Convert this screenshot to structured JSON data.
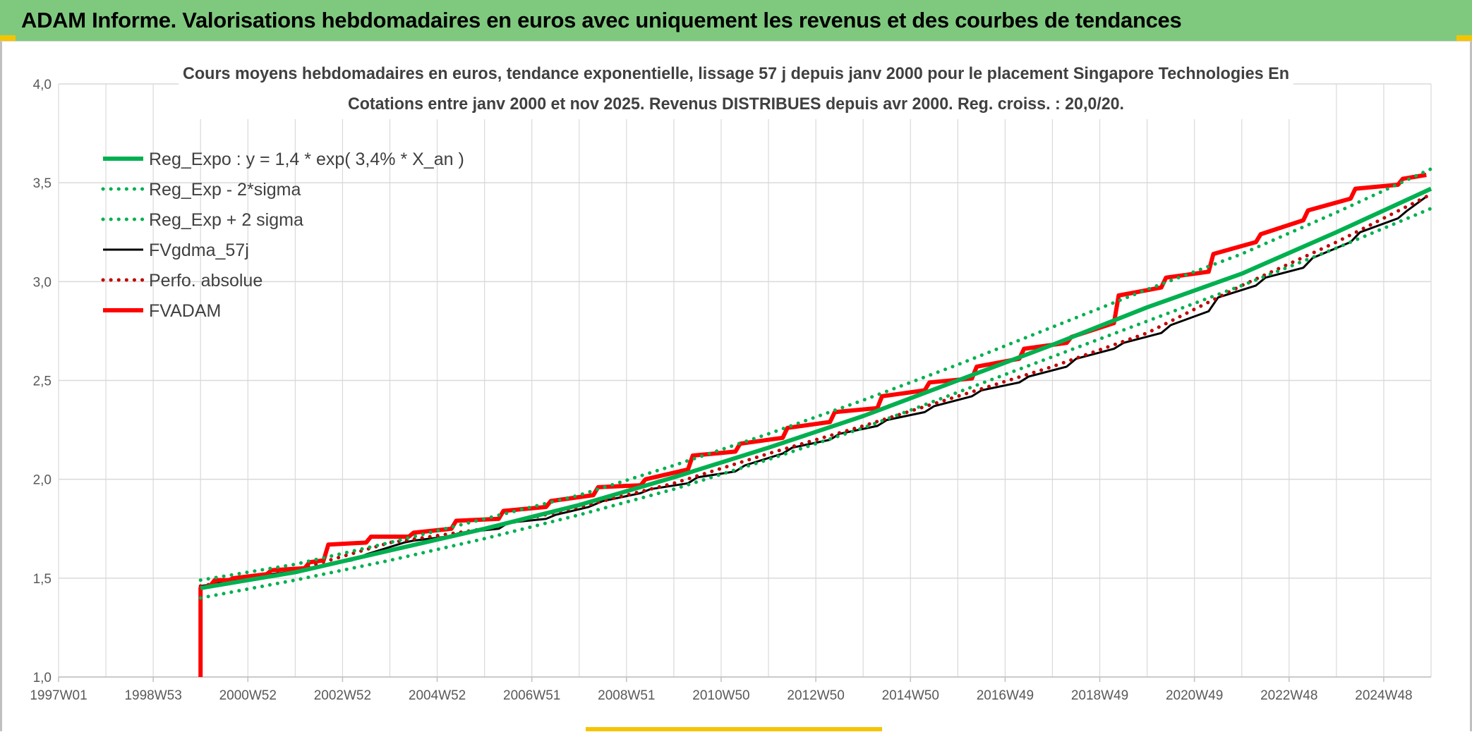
{
  "banner": {
    "title": "ADAM Informe. Valorisations hebdomadaires en euros avec uniquement les revenus et des courbes de tendances"
  },
  "colors": {
    "banner_bg": "#7fc97f",
    "corner_accent": "#f5c400",
    "reg_green": "#00b050",
    "fv_black": "#000000",
    "fvadam_red": "#ff0000",
    "perfo_red": "#c00000"
  },
  "chart_data": {
    "type": "line",
    "title": "Cours moyens hebdomadaires en euros, tendance exponentielle, lissage 57 j depuis janv 2000 pour le placement Singapore Technologies En",
    "subtitle": "Cotations entre janv 2000 et nov 2025. Revenus DISTRIBUES depuis avr 2000. Reg. croiss. : 20,0/20.",
    "xlabel": "",
    "ylabel": "",
    "x_range": [
      1997.0,
      2026.0
    ],
    "ylim": [
      1.0,
      4.0
    ],
    "y_ticks": [
      "1,0",
      "1,5",
      "2,0",
      "2,5",
      "3,0",
      "3,5",
      "4,0"
    ],
    "x_ticks": [
      {
        "label": "1997W01",
        "x": 1997.0
      },
      {
        "label": "1998W53",
        "x": 1999.0
      },
      {
        "label": "2000W52",
        "x": 2001.0
      },
      {
        "label": "2002W52",
        "x": 2003.0
      },
      {
        "label": "2004W52",
        "x": 2005.0
      },
      {
        "label": "2006W51",
        "x": 2007.0
      },
      {
        "label": "2008W51",
        "x": 2009.0
      },
      {
        "label": "2010W50",
        "x": 2011.0
      },
      {
        "label": "2012W50",
        "x": 2013.0
      },
      {
        "label": "2014W50",
        "x": 2015.0
      },
      {
        "label": "2016W49",
        "x": 2017.0
      },
      {
        "label": "2018W49",
        "x": 2019.0
      },
      {
        "label": "2020W49",
        "x": 2021.0
      },
      {
        "label": "2022W48",
        "x": 2023.0
      },
      {
        "label": "2024W48",
        "x": 2025.0
      }
    ],
    "grid": true,
    "legend_position": "top-left",
    "series": [
      {
        "name": "Reg_Expo : y = 1,4 * exp( 3,4% *  X_an )",
        "style": "solid-thick",
        "color": "#00b050",
        "x": [
          2000.0,
          2002.0,
          2004.0,
          2006.0,
          2008.0,
          2010.0,
          2012.0,
          2014.0,
          2016.0,
          2018.0,
          2020.0,
          2022.0,
          2024.0,
          2026.0
        ],
        "y": [
          1.45,
          1.53,
          1.64,
          1.75,
          1.87,
          2.01,
          2.16,
          2.32,
          2.5,
          2.68,
          2.87,
          3.04,
          3.25,
          3.47
        ]
      },
      {
        "name": "Reg_Exp - 2*sigma",
        "style": "dotted",
        "color": "#00b050",
        "x": [
          2000.0,
          2002.0,
          2004.0,
          2006.0,
          2008.0,
          2010.0,
          2012.0,
          2014.0,
          2016.0,
          2018.0,
          2020.0,
          2022.0,
          2024.0,
          2026.0
        ],
        "y": [
          1.4,
          1.49,
          1.59,
          1.7,
          1.82,
          1.95,
          2.1,
          2.26,
          2.44,
          2.62,
          2.8,
          2.98,
          3.17,
          3.37
        ]
      },
      {
        "name": "Reg_Exp + 2 sigma",
        "style": "dotted",
        "color": "#00b050",
        "x": [
          2000.0,
          2002.0,
          2004.0,
          2006.0,
          2008.0,
          2010.0,
          2012.0,
          2014.0,
          2016.0,
          2018.0,
          2020.0,
          2022.0,
          2024.0,
          2026.0
        ],
        "y": [
          1.49,
          1.57,
          1.68,
          1.8,
          1.92,
          2.07,
          2.23,
          2.4,
          2.58,
          2.77,
          2.96,
          3.14,
          3.35,
          3.57
        ]
      },
      {
        "name": "FVgdma_57j",
        "style": "solid",
        "color": "#000000",
        "x": [
          2000.0,
          2000.3,
          2001.0,
          2001.5,
          2002.2,
          2002.5,
          2003.2,
          2003.5,
          2004.3,
          2004.5,
          2005.2,
          2005.5,
          2006.3,
          2006.5,
          2007.3,
          2007.5,
          2008.2,
          2008.5,
          2009.3,
          2009.5,
          2010.3,
          2010.5,
          2011.3,
          2011.5,
          2012.3,
          2012.5,
          2013.3,
          2013.5,
          2014.3,
          2014.5,
          2015.3,
          2015.5,
          2016.3,
          2016.5,
          2017.3,
          2017.5,
          2018.3,
          2018.5,
          2019.3,
          2019.5,
          2020.3,
          2020.5,
          2021.3,
          2021.5,
          2022.3,
          2022.5,
          2023.3,
          2023.5,
          2024.3,
          2024.5,
          2025.3,
          2025.5,
          2025.9
        ],
        "y": [
          1.46,
          1.47,
          1.51,
          1.52,
          1.54,
          1.56,
          1.59,
          1.62,
          1.68,
          1.69,
          1.71,
          1.73,
          1.75,
          1.78,
          1.8,
          1.82,
          1.86,
          1.89,
          1.93,
          1.95,
          1.98,
          2.01,
          2.04,
          2.07,
          2.13,
          2.16,
          2.2,
          2.23,
          2.27,
          2.3,
          2.34,
          2.37,
          2.42,
          2.45,
          2.49,
          2.52,
          2.57,
          2.61,
          2.66,
          2.69,
          2.74,
          2.78,
          2.85,
          2.92,
          2.98,
          3.02,
          3.07,
          3.12,
          3.2,
          3.25,
          3.32,
          3.36,
          3.43
        ]
      },
      {
        "name": "Perfo. absolue",
        "style": "dotted",
        "color": "#c00000",
        "x": [
          2000.0,
          2002.0,
          2004.0,
          2006.0,
          2008.0,
          2010.0,
          2012.0,
          2014.0,
          2016.0,
          2018.0,
          2020.0,
          2022.0,
          2024.0,
          2025.9
        ],
        "y": [
          1.46,
          1.54,
          1.68,
          1.75,
          1.86,
          1.98,
          2.13,
          2.27,
          2.42,
          2.57,
          2.74,
          2.98,
          3.2,
          3.43
        ]
      },
      {
        "name": "FVADAM",
        "style": "solid-thick",
        "color": "#ff0000",
        "x": [
          2000.0,
          2000.0,
          2000.2,
          2000.3,
          2000.6,
          2000.7,
          2001.4,
          2001.5,
          2002.2,
          2002.3,
          2002.6,
          2002.7,
          2003.5,
          2003.6,
          2004.4,
          2004.5,
          2005.3,
          2005.4,
          2006.3,
          2006.4,
          2007.3,
          2007.4,
          2008.3,
          2008.4,
          2009.3,
          2009.4,
          2010.3,
          2010.4,
          2011.3,
          2011.4,
          2012.3,
          2012.4,
          2013.3,
          2013.4,
          2014.3,
          2014.4,
          2015.3,
          2015.4,
          2016.3,
          2016.4,
          2017.3,
          2017.4,
          2018.3,
          2018.4,
          2019.3,
          2019.4,
          2020.3,
          2020.4,
          2021.3,
          2021.4,
          2022.3,
          2022.4,
          2023.3,
          2023.4,
          2024.3,
          2024.4,
          2025.3,
          2025.4,
          2025.9
        ],
        "y": [
          1.0,
          1.45,
          1.46,
          1.49,
          1.49,
          1.5,
          1.52,
          1.54,
          1.55,
          1.58,
          1.59,
          1.67,
          1.68,
          1.71,
          1.71,
          1.73,
          1.75,
          1.79,
          1.8,
          1.84,
          1.86,
          1.89,
          1.92,
          1.96,
          1.97,
          2.0,
          2.05,
          2.12,
          2.14,
          2.18,
          2.21,
          2.26,
          2.29,
          2.34,
          2.36,
          2.42,
          2.45,
          2.49,
          2.51,
          2.57,
          2.61,
          2.66,
          2.69,
          2.72,
          2.79,
          2.93,
          2.97,
          3.02,
          3.05,
          3.14,
          3.2,
          3.24,
          3.31,
          3.36,
          3.42,
          3.47,
          3.49,
          3.52,
          3.54
        ]
      }
    ]
  }
}
